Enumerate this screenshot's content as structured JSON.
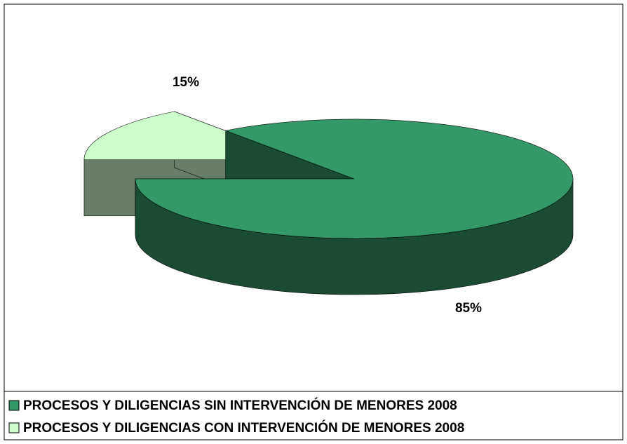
{
  "chart_data": {
    "type": "pie",
    "categories": [
      "PROCESOS Y DILIGENCIAS SIN INTERVENCIÓN DE MENORES 2008",
      "PROCESOS Y DILIGENCIAS CON INTERVENCIÓN DE MENORES 2008"
    ],
    "values": [
      85,
      15
    ],
    "value_labels": [
      "85%",
      "15%"
    ],
    "colors": [
      "#339966",
      "#ccffcc"
    ],
    "legend": "bottom"
  }
}
